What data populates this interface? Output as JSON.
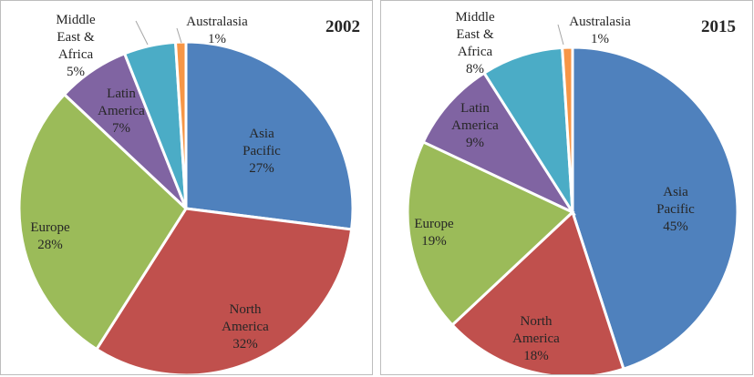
{
  "chart_data": [
    {
      "type": "pie",
      "title": "2002",
      "slices": [
        {
          "label": [
            "Asia",
            "Pacific"
          ],
          "value": 27,
          "display": "27%",
          "color": "#4f81bd"
        },
        {
          "label": [
            "North",
            "America"
          ],
          "value": 32,
          "display": "32%",
          "color": "#c0504d"
        },
        {
          "label": [
            "Europe"
          ],
          "value": 28,
          "display": "28%",
          "color": "#9bbb59"
        },
        {
          "label": [
            "Latin",
            "America"
          ],
          "value": 7,
          "display": "7%",
          "color": "#8064a2"
        },
        {
          "label": [
            "Middle",
            "East &",
            "Africa"
          ],
          "value": 5,
          "display": "5%",
          "color": "#4bacc6"
        },
        {
          "label": [
            "Australasia"
          ],
          "value": 1,
          "display": "1%",
          "color": "#f79646"
        }
      ]
    },
    {
      "type": "pie",
      "title": "2015",
      "slices": [
        {
          "label": [
            "Asia",
            "Pacific"
          ],
          "value": 45,
          "display": "45%",
          "color": "#4f81bd"
        },
        {
          "label": [
            "North",
            "America"
          ],
          "value": 18,
          "display": "18%",
          "color": "#c0504d"
        },
        {
          "label": [
            "Europe"
          ],
          "value": 19,
          "display": "19%",
          "color": "#9bbb59"
        },
        {
          "label": [
            "Latin",
            "America"
          ],
          "value": 9,
          "display": "9%",
          "color": "#8064a2"
        },
        {
          "label": [
            "Middle",
            "East &",
            "Africa"
          ],
          "value": 8,
          "display": "8%",
          "color": "#4bacc6"
        },
        {
          "label": [
            "Australasia"
          ],
          "value": 1,
          "display": "1%",
          "color": "#f79646"
        }
      ]
    }
  ]
}
